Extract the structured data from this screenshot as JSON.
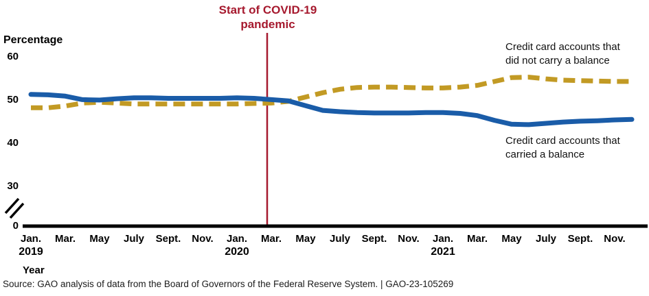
{
  "annotation": {
    "covid_title": "Start of COVID-19\npandemic",
    "covid_month": "2020-03"
  },
  "axis": {
    "y_title": "Percentage",
    "x_title": "Year",
    "y_ticks": [
      60,
      50,
      40,
      30,
      0
    ],
    "has_axis_break": true,
    "x_tick_labels": [
      "Jan.",
      "Mar.",
      "May",
      "July",
      "Sept.",
      "Nov.",
      "Jan.",
      "Mar.",
      "May",
      "July",
      "Sept.",
      "Nov.",
      "Jan.",
      "Mar.",
      "May",
      "July",
      "Sept.",
      "Nov."
    ],
    "year_labels": [
      {
        "label": "2019",
        "month_index": 0
      },
      {
        "label": "2020",
        "month_index": 12
      },
      {
        "label": "2021",
        "month_index": 24
      }
    ]
  },
  "colors": {
    "carried_balance_line": "#1A5CA8",
    "did_not_carry_line": "#C29A24",
    "covid_marker": "#A6192E",
    "axis": "#000000"
  },
  "labels": {
    "did_not_carry": "Credit card accounts that\ndid not carry a balance",
    "carried": "Credit card accounts that\ncarried a balance"
  },
  "source_line": "Source: GAO analysis of data from the Board of Governors of the Federal Reserve System.  |  GAO-23-105269",
  "chart_data": {
    "type": "line",
    "title": "",
    "xlabel": "Year",
    "ylabel": "Percentage",
    "ylim": [
      0,
      60
    ],
    "grid": false,
    "x": [
      "2019-01",
      "2019-02",
      "2019-03",
      "2019-04",
      "2019-05",
      "2019-06",
      "2019-07",
      "2019-08",
      "2019-09",
      "2019-10",
      "2019-11",
      "2019-12",
      "2020-01",
      "2020-02",
      "2020-03",
      "2020-04",
      "2020-05",
      "2020-06",
      "2020-07",
      "2020-08",
      "2020-09",
      "2020-10",
      "2020-11",
      "2020-12",
      "2021-01",
      "2021-02",
      "2021-03",
      "2021-04",
      "2021-05",
      "2021-06",
      "2021-07",
      "2021-08",
      "2021-09",
      "2021-10",
      "2021-11",
      "2021-12"
    ],
    "series": [
      {
        "id": "carried",
        "name": "Credit card accounts that carried a balance",
        "style": "solid",
        "color": "#1A5CA8",
        "values": [
          51.3,
          51.2,
          50.9,
          50.1,
          50.0,
          50.3,
          50.5,
          50.5,
          50.4,
          50.4,
          50.4,
          50.4,
          50.5,
          50.4,
          50.1,
          49.8,
          48.7,
          47.6,
          47.3,
          47.1,
          47.0,
          47.0,
          47.0,
          47.1,
          47.1,
          46.9,
          46.4,
          45.3,
          44.4,
          44.3,
          44.6,
          44.9,
          45.1,
          45.2,
          45.4,
          45.5
        ]
      },
      {
        "id": "did_not_carry",
        "name": "Credit card accounts that did not carry a balance",
        "style": "dashed",
        "color": "#C29A24",
        "values": [
          48.2,
          48.2,
          48.6,
          49.3,
          49.5,
          49.3,
          49.1,
          49.1,
          49.1,
          49.1,
          49.1,
          49.1,
          49.1,
          49.2,
          49.3,
          49.7,
          50.7,
          51.7,
          52.5,
          52.9,
          53.0,
          53.0,
          52.9,
          52.8,
          52.8,
          53.0,
          53.4,
          54.3,
          55.2,
          55.3,
          54.9,
          54.6,
          54.5,
          54.4,
          54.3,
          54.3
        ]
      }
    ]
  }
}
